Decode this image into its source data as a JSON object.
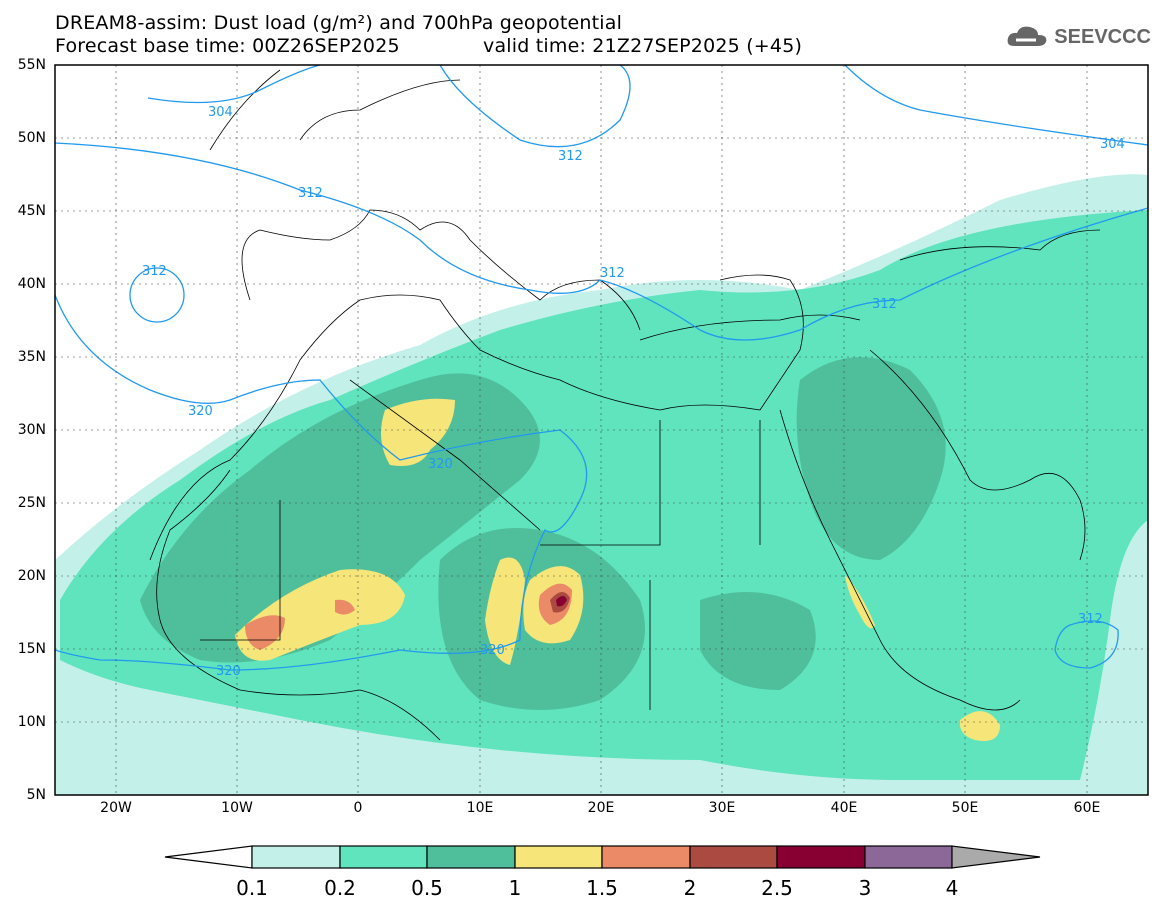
{
  "title": "DREAM8-assim: Dust load (g/m²) and 700hPa geopotential",
  "subtitle_base": "Forecast base time: 00Z26SEP2025",
  "subtitle_valid": "valid time: 21Z27SEP2025 (+45)",
  "logo_text": "SEEVCCC",
  "lat_labels": [
    "55N",
    "50N",
    "45N",
    "40N",
    "35N",
    "30N",
    "25N",
    "20N",
    "15N",
    "10N",
    "5N"
  ],
  "lon_labels": [
    "20W",
    "10W",
    "0",
    "10E",
    "20E",
    "30E",
    "40E",
    "50E",
    "60E"
  ],
  "contour_labels": [
    "304",
    "312",
    "312",
    "312",
    "312",
    "312",
    "304",
    "320",
    "320",
    "320",
    "320",
    "312"
  ],
  "colorbar": {
    "ticks": [
      "0.1",
      "0.2",
      "0.5",
      "1",
      "1.5",
      "2",
      "2.5",
      "3",
      "4"
    ],
    "colors": [
      "#c3f1ea",
      "#5fe4bd",
      "#4fbf9b",
      "#f6e67a",
      "#ea8a67",
      "#ab4a40",
      "#870031",
      "#8c6899"
    ]
  }
}
